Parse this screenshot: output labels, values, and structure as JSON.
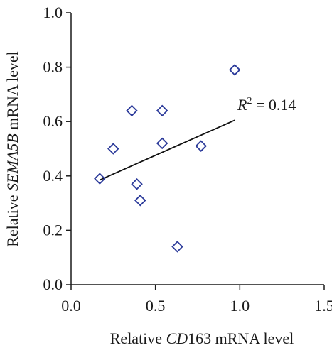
{
  "chart_data": {
    "type": "scatter",
    "title": "",
    "xlabel": {
      "prefix": "Relative ",
      "italic": "CD",
      "rest": "163 mRNA level"
    },
    "ylabel": {
      "prefix": "Relative ",
      "italic": "SEMA5B",
      "rest": " mRNA level"
    },
    "xlim": [
      0,
      1.5
    ],
    "ylim": [
      0,
      1.0
    ],
    "xticks": [
      "0.0",
      "0.5",
      "1.0",
      "1.5"
    ],
    "yticks": [
      "0.0",
      "0.2",
      "0.4",
      "0.6",
      "0.8",
      "1.0"
    ],
    "grid": false,
    "marker": "open-diamond",
    "marker_color": "#2b3a9a",
    "points": [
      {
        "x": 0.17,
        "y": 0.39
      },
      {
        "x": 0.25,
        "y": 0.5
      },
      {
        "x": 0.36,
        "y": 0.64
      },
      {
        "x": 0.39,
        "y": 0.37
      },
      {
        "x": 0.41,
        "y": 0.31
      },
      {
        "x": 0.54,
        "y": 0.64
      },
      {
        "x": 0.54,
        "y": 0.52
      },
      {
        "x": 0.63,
        "y": 0.14
      },
      {
        "x": 0.77,
        "y": 0.51
      },
      {
        "x": 0.97,
        "y": 0.79
      }
    ],
    "trendline": {
      "x": [
        0.17,
        0.97
      ],
      "y": [
        0.385,
        0.605
      ]
    },
    "annotation": {
      "base": "R",
      "sup": "2",
      "text": " = 0.14"
    }
  }
}
